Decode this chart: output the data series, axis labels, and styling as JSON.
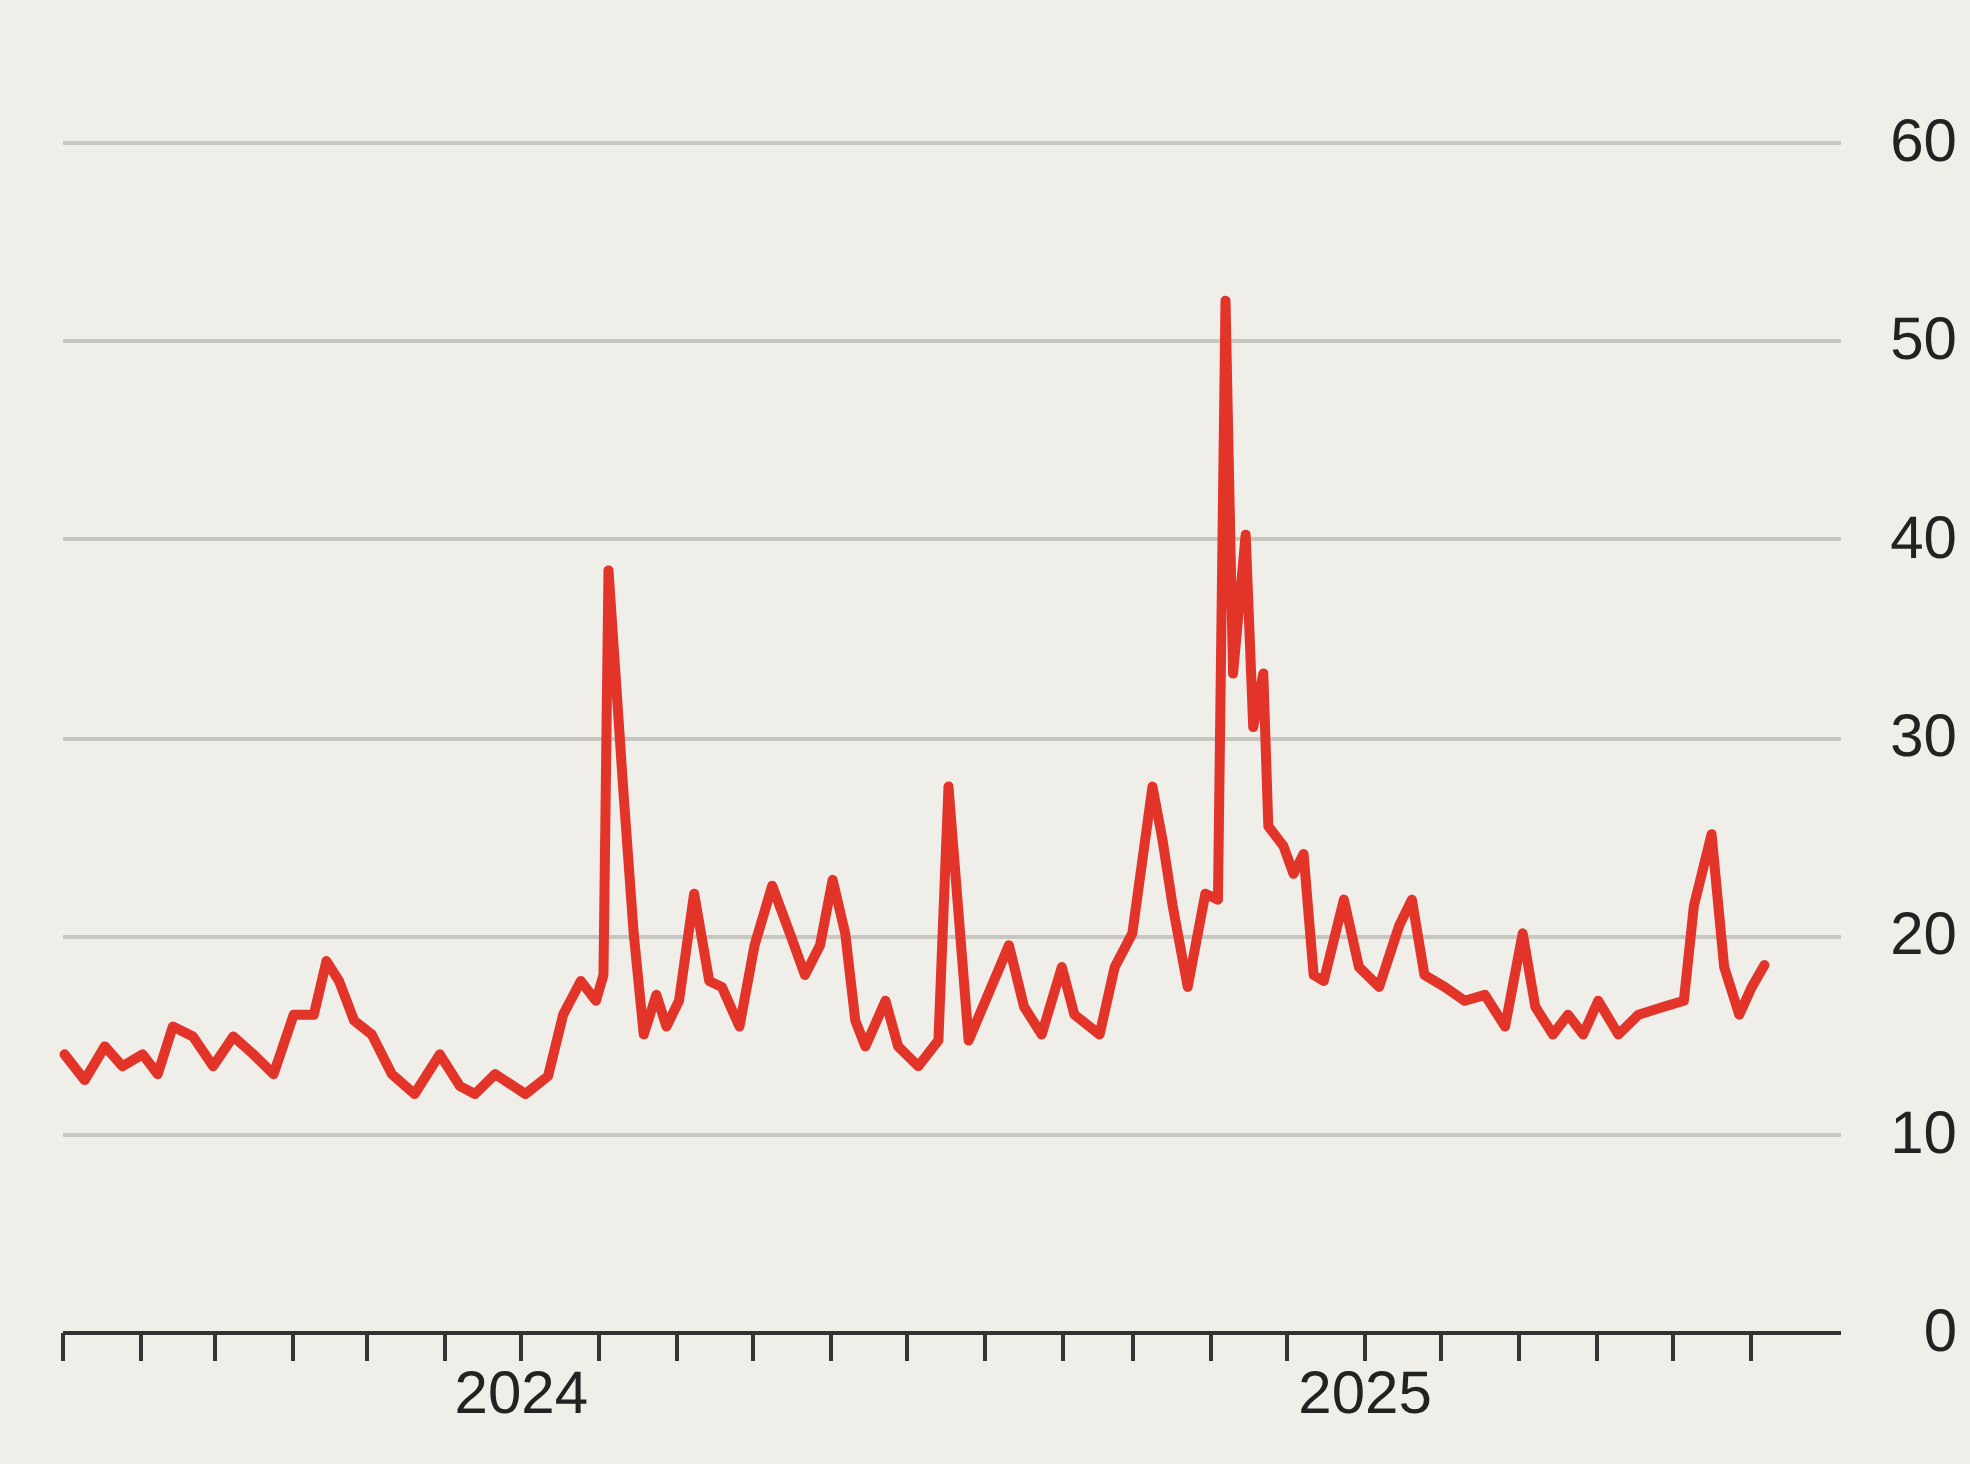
{
  "chart_data": {
    "type": "line",
    "x": [
      "2024-01-02",
      "2024-01-10",
      "2024-01-18",
      "2024-01-25",
      "2024-02-02",
      "2024-02-08",
      "2024-02-14",
      "2024-02-22",
      "2024-03-01",
      "2024-03-09",
      "2024-03-17",
      "2024-03-25",
      "2024-04-02",
      "2024-04-10",
      "2024-04-15",
      "2024-04-20",
      "2024-04-26",
      "2024-05-03",
      "2024-05-11",
      "2024-05-20",
      "2024-05-30",
      "2024-06-07",
      "2024-06-13",
      "2024-06-21",
      "2024-07-03",
      "2024-07-12",
      "2024-07-18",
      "2024-07-25",
      "2024-07-31",
      "2024-08-03",
      "2024-08-05",
      "2024-08-11",
      "2024-08-15",
      "2024-08-19",
      "2024-08-24",
      "2024-08-28",
      "2024-09-02",
      "2024-09-08",
      "2024-09-14",
      "2024-09-19",
      "2024-09-26",
      "2024-10-02",
      "2024-10-09",
      "2024-10-16",
      "2024-10-22",
      "2024-10-28",
      "2024-11-02",
      "2024-11-07",
      "2024-11-11",
      "2024-11-15",
      "2024-11-23",
      "2024-11-28",
      "2024-12-06",
      "2024-12-14",
      "2024-12-18",
      "2024-12-26",
      "2025-01-05",
      "2025-01-11",
      "2025-01-17",
      "2025-01-24",
      "2025-02-01",
      "2025-02-06",
      "2025-02-16",
      "2025-02-22",
      "2025-03-01",
      "2025-03-09",
      "2025-03-13",
      "2025-03-17",
      "2025-03-23",
      "2025-03-30",
      "2025-04-04",
      "2025-04-07",
      "2025-04-10",
      "2025-04-15",
      "2025-04-18",
      "2025-04-22",
      "2025-04-24",
      "2025-04-30",
      "2025-05-04",
      "2025-05-08",
      "2025-05-12",
      "2025-05-16",
      "2025-05-24",
      "2025-05-30",
      "2025-06-07",
      "2025-06-15",
      "2025-06-20",
      "2025-06-25",
      "2025-07-03",
      "2025-07-11",
      "2025-07-19",
      "2025-07-27",
      "2025-08-03",
      "2025-08-08",
      "2025-08-15",
      "2025-08-21",
      "2025-08-27",
      "2025-09-02",
      "2025-09-10",
      "2025-09-18",
      "2025-09-28",
      "2025-10-06",
      "2025-10-10",
      "2025-10-17",
      "2025-10-22",
      "2025-10-28",
      "2025-11-02",
      "2025-11-07"
    ],
    "series": [
      {
        "color": "#e3342a",
        "values": [
          14.0,
          12.7,
          14.4,
          13.4,
          14.0,
          13.0,
          15.4,
          14.9,
          13.4,
          14.9,
          14.0,
          13.0,
          16.0,
          16.0,
          18.7,
          17.7,
          15.7,
          15.0,
          13.0,
          12.0,
          14.0,
          12.4,
          12.0,
          13.0,
          12.0,
          12.9,
          16.0,
          17.7,
          16.7,
          18.0,
          38.4,
          27.1,
          20.1,
          15.0,
          17.0,
          15.4,
          16.7,
          22.1,
          17.7,
          17.4,
          15.4,
          19.5,
          22.5,
          20.1,
          18.0,
          19.5,
          22.8,
          20.1,
          15.7,
          14.4,
          16.7,
          14.4,
          13.4,
          14.7,
          27.5,
          14.7,
          17.7,
          19.5,
          16.4,
          15.0,
          18.4,
          16.0,
          15.0,
          18.4,
          20.1,
          27.5,
          24.8,
          21.5,
          17.4,
          22.1,
          21.8,
          52.0,
          33.2,
          40.2,
          30.5,
          33.2,
          25.5,
          24.5,
          23.1,
          24.1,
          18.0,
          17.7,
          21.8,
          18.4,
          17.4,
          20.5,
          21.8,
          18.0,
          17.4,
          16.7,
          17.0,
          15.4,
          20.1,
          16.4,
          15.0,
          16.0,
          15.0,
          16.7,
          15.0,
          16.0,
          16.4,
          16.7,
          21.5,
          25.1,
          18.4,
          16.0,
          17.4,
          18.5
        ]
      }
    ],
    "xlim": [
      "2024-01-01",
      "2025-12-07"
    ],
    "xticks": [
      {
        "value": "2024-01-01",
        "label": null
      },
      {
        "value": "2024-02-01",
        "label": null
      },
      {
        "value": "2024-03-01",
        "label": null
      },
      {
        "value": "2024-04-01",
        "label": null
      },
      {
        "value": "2024-05-01",
        "label": null
      },
      {
        "value": "2024-06-01",
        "label": null
      },
      {
        "value": "2024-07-01",
        "label": "2024"
      },
      {
        "value": "2024-08-01",
        "label": null
      },
      {
        "value": "2024-09-01",
        "label": null
      },
      {
        "value": "2024-10-01",
        "label": null
      },
      {
        "value": "2024-11-01",
        "label": null
      },
      {
        "value": "2024-12-01",
        "label": null
      },
      {
        "value": "2025-01-01",
        "label": null
      },
      {
        "value": "2025-02-01",
        "label": null
      },
      {
        "value": "2025-03-01",
        "label": null
      },
      {
        "value": "2025-04-01",
        "label": null
      },
      {
        "value": "2025-05-01",
        "label": null
      },
      {
        "value": "2025-06-01",
        "label": "2025"
      },
      {
        "value": "2025-07-01",
        "label": null
      },
      {
        "value": "2025-08-01",
        "label": null
      },
      {
        "value": "2025-09-01",
        "label": null
      },
      {
        "value": "2025-10-01",
        "label": null
      },
      {
        "value": "2025-11-01",
        "label": null
      }
    ],
    "ylim": [
      0,
      60
    ],
    "yticks": [
      0,
      10,
      20,
      30,
      40,
      50,
      60
    ],
    "grid": "y",
    "marker": "none",
    "line_style": "solid"
  }
}
